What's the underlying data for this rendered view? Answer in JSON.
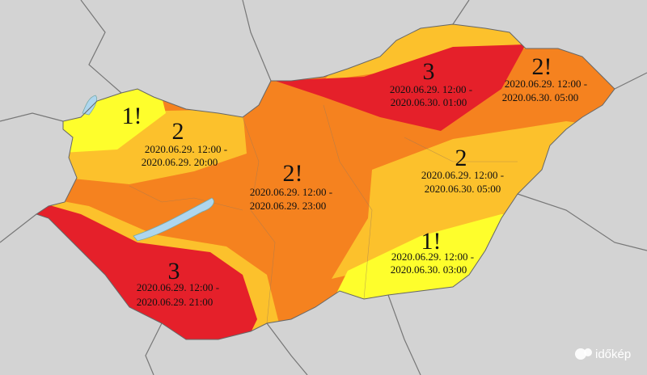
{
  "zones": [
    {
      "level": "1!"
    },
    {
      "level": "2",
      "from": "2020.06.29. 12:00 -",
      "to": "2020.06.29. 20:00"
    },
    {
      "level": "2!",
      "from": "2020.06.29. 12:00 -",
      "to": "2020.06.29. 23:00"
    },
    {
      "level": "3",
      "from": "2020.06.29. 12:00 -",
      "to": "2020.06.30. 01:00"
    },
    {
      "level": "2!",
      "from": "2020.06.29. 12:00 -",
      "to": "2020.06.30. 05:00"
    },
    {
      "level": "2",
      "from": "2020.06.29. 12:00 -",
      "to": "2020.06.30. 05:00"
    },
    {
      "level": "1!",
      "from": "2020.06.29. 12:00 -",
      "to": "2020.06.30. 03:00"
    },
    {
      "level": "3",
      "from": "2020.06.29. 12:00 -",
      "to": "2020.06.29. 21:00"
    }
  ],
  "logo": "időkép"
}
